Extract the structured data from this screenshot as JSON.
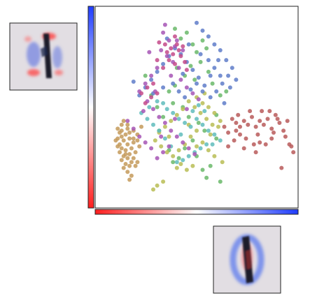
{
  "chart_data": {
    "type": "scatter",
    "title": "",
    "xlabel": "",
    "ylabel": "",
    "xlim": [
      0,
      1
    ],
    "ylim": [
      0,
      1
    ],
    "grid": false,
    "legend": "none",
    "colorbars": [
      {
        "orientation": "vertical",
        "colors": [
          "#1f3cff",
          "#ffffff",
          "#ff1e1e"
        ]
      },
      {
        "orientation": "horizontal",
        "colors": [
          "#ff1e1e",
          "#ffffff",
          "#1f3cff"
        ]
      }
    ],
    "series": [
      {
        "color": "#b85a5a",
        "points": [
          [
            0.68,
            0.44
          ],
          [
            0.7,
            0.42
          ],
          [
            0.72,
            0.4
          ],
          [
            0.74,
            0.43
          ],
          [
            0.76,
            0.41
          ],
          [
            0.78,
            0.45
          ],
          [
            0.8,
            0.4
          ],
          [
            0.82,
            0.43
          ],
          [
            0.84,
            0.41
          ],
          [
            0.86,
            0.44
          ],
          [
            0.88,
            0.39
          ],
          [
            0.9,
            0.46
          ],
          [
            0.92,
            0.42
          ],
          [
            0.94,
            0.38
          ],
          [
            0.96,
            0.43
          ],
          [
            0.97,
            0.31
          ],
          [
            0.98,
            0.3
          ],
          [
            0.99,
            0.27
          ],
          [
            0.93,
            0.19
          ],
          [
            0.88,
            0.34
          ],
          [
            0.85,
            0.31
          ],
          [
            0.82,
            0.32
          ],
          [
            0.79,
            0.31
          ],
          [
            0.75,
            0.34
          ],
          [
            0.72,
            0.36
          ],
          [
            0.7,
            0.38
          ],
          [
            0.66,
            0.37
          ],
          [
            0.64,
            0.4
          ],
          [
            0.71,
            0.46
          ],
          [
            0.77,
            0.48
          ],
          [
            0.83,
            0.48
          ],
          [
            0.87,
            0.48
          ],
          [
            0.95,
            0.35
          ],
          [
            0.89,
            0.37
          ],
          [
            0.81,
            0.36
          ],
          [
            0.69,
            0.33
          ],
          [
            0.74,
            0.29
          ],
          [
            0.8,
            0.27
          ],
          [
            0.66,
            0.3
          ],
          [
            0.91,
            0.44
          ]
        ]
      },
      {
        "color": "#c49a5a",
        "points": [
          [
            0.1,
            0.39
          ],
          [
            0.11,
            0.37
          ],
          [
            0.12,
            0.35
          ],
          [
            0.1,
            0.34
          ],
          [
            0.13,
            0.33
          ],
          [
            0.11,
            0.31
          ],
          [
            0.12,
            0.29
          ],
          [
            0.14,
            0.28
          ],
          [
            0.11,
            0.27
          ],
          [
            0.13,
            0.25
          ],
          [
            0.15,
            0.24
          ],
          [
            0.12,
            0.23
          ],
          [
            0.14,
            0.21
          ],
          [
            0.16,
            0.2
          ],
          [
            0.13,
            0.19
          ],
          [
            0.15,
            0.17
          ],
          [
            0.17,
            0.15
          ],
          [
            0.16,
            0.13
          ],
          [
            0.14,
            0.36
          ],
          [
            0.16,
            0.34
          ],
          [
            0.18,
            0.32
          ],
          [
            0.15,
            0.31
          ],
          [
            0.17,
            0.29
          ],
          [
            0.19,
            0.27
          ],
          [
            0.16,
            0.26
          ],
          [
            0.18,
            0.24
          ],
          [
            0.2,
            0.22
          ],
          [
            0.17,
            0.22
          ],
          [
            0.19,
            0.2
          ],
          [
            0.12,
            0.41
          ],
          [
            0.15,
            0.39
          ],
          [
            0.18,
            0.38
          ],
          [
            0.2,
            0.36
          ],
          [
            0.22,
            0.4
          ],
          [
            0.13,
            0.43
          ],
          [
            0.1,
            0.3
          ],
          [
            0.09,
            0.33
          ],
          [
            0.14,
            0.26
          ],
          [
            0.21,
            0.3
          ],
          [
            0.16,
            0.37
          ],
          [
            0.12,
            0.38
          ],
          [
            0.18,
            0.34
          ],
          [
            0.2,
            0.33
          ],
          [
            0.15,
            0.41
          ]
        ]
      },
      {
        "color": "#6ab86a",
        "points": [
          [
            0.39,
            0.9
          ],
          [
            0.42,
            0.85
          ],
          [
            0.45,
            0.88
          ],
          [
            0.48,
            0.82
          ],
          [
            0.5,
            0.78
          ],
          [
            0.53,
            0.84
          ],
          [
            0.55,
            0.8
          ],
          [
            0.52,
            0.73
          ],
          [
            0.47,
            0.71
          ],
          [
            0.44,
            0.66
          ],
          [
            0.49,
            0.64
          ],
          [
            0.56,
            0.68
          ],
          [
            0.58,
            0.62
          ],
          [
            0.4,
            0.7
          ],
          [
            0.36,
            0.58
          ],
          [
            0.38,
            0.52
          ],
          [
            0.43,
            0.5
          ],
          [
            0.46,
            0.45
          ],
          [
            0.51,
            0.42
          ],
          [
            0.54,
            0.38
          ],
          [
            0.48,
            0.33
          ],
          [
            0.44,
            0.29
          ],
          [
            0.5,
            0.25
          ],
          [
            0.41,
            0.24
          ],
          [
            0.38,
            0.22
          ],
          [
            0.36,
            0.28
          ],
          [
            0.57,
            0.2
          ],
          [
            0.53,
            0.18
          ],
          [
            0.6,
            0.34
          ],
          [
            0.62,
            0.56
          ],
          [
            0.3,
            0.5
          ],
          [
            0.27,
            0.56
          ],
          [
            0.24,
            0.66
          ],
          [
            0.33,
            0.45
          ],
          [
            0.55,
            0.14
          ],
          [
            0.62,
            0.12
          ],
          [
            0.31,
            0.38
          ],
          [
            0.39,
            0.61
          ],
          [
            0.65,
            0.58
          ],
          [
            0.6,
            0.46
          ]
        ]
      },
      {
        "color": "#b8bd55",
        "points": [
          [
            0.5,
            0.55
          ],
          [
            0.53,
            0.52
          ],
          [
            0.56,
            0.5
          ],
          [
            0.59,
            0.47
          ],
          [
            0.62,
            0.43
          ],
          [
            0.61,
            0.4
          ],
          [
            0.58,
            0.41
          ],
          [
            0.55,
            0.44
          ],
          [
            0.52,
            0.47
          ],
          [
            0.49,
            0.5
          ],
          [
            0.46,
            0.53
          ],
          [
            0.43,
            0.49
          ],
          [
            0.4,
            0.46
          ],
          [
            0.37,
            0.43
          ],
          [
            0.34,
            0.4
          ],
          [
            0.31,
            0.37
          ],
          [
            0.29,
            0.33
          ],
          [
            0.32,
            0.3
          ],
          [
            0.35,
            0.27
          ],
          [
            0.38,
            0.25
          ],
          [
            0.41,
            0.28
          ],
          [
            0.44,
            0.31
          ],
          [
            0.47,
            0.35
          ],
          [
            0.5,
            0.38
          ],
          [
            0.53,
            0.32
          ],
          [
            0.56,
            0.28
          ],
          [
            0.59,
            0.25
          ],
          [
            0.63,
            0.22
          ],
          [
            0.48,
            0.2
          ],
          [
            0.45,
            0.18
          ],
          [
            0.42,
            0.21
          ],
          [
            0.4,
            0.19
          ],
          [
            0.33,
            0.12
          ],
          [
            0.3,
            0.1
          ],
          [
            0.28,
            0.08
          ],
          [
            0.5,
            0.3
          ],
          [
            0.57,
            0.36
          ],
          [
            0.54,
            0.57
          ],
          [
            0.46,
            0.41
          ],
          [
            0.36,
            0.35
          ]
        ]
      },
      {
        "color": "#5fbcbc",
        "points": [
          [
            0.33,
            0.52
          ],
          [
            0.35,
            0.49
          ],
          [
            0.38,
            0.47
          ],
          [
            0.41,
            0.44
          ],
          [
            0.44,
            0.42
          ],
          [
            0.47,
            0.4
          ],
          [
            0.5,
            0.44
          ],
          [
            0.53,
            0.41
          ],
          [
            0.56,
            0.38
          ],
          [
            0.59,
            0.36
          ],
          [
            0.62,
            0.33
          ],
          [
            0.55,
            0.31
          ],
          [
            0.52,
            0.29
          ],
          [
            0.49,
            0.27
          ],
          [
            0.46,
            0.25
          ],
          [
            0.43,
            0.23
          ],
          [
            0.4,
            0.22
          ],
          [
            0.37,
            0.3
          ],
          [
            0.34,
            0.34
          ],
          [
            0.31,
            0.38
          ],
          [
            0.28,
            0.41
          ],
          [
            0.25,
            0.44
          ],
          [
            0.22,
            0.47
          ],
          [
            0.26,
            0.5
          ],
          [
            0.3,
            0.53
          ],
          [
            0.48,
            0.48
          ],
          [
            0.51,
            0.51
          ],
          [
            0.54,
            0.48
          ],
          [
            0.58,
            0.31
          ],
          [
            0.42,
            0.36
          ]
        ]
      },
      {
        "color": "#5f7dc9",
        "points": [
          [
            0.5,
            0.93
          ],
          [
            0.53,
            0.89
          ],
          [
            0.56,
            0.86
          ],
          [
            0.59,
            0.82
          ],
          [
            0.62,
            0.79
          ],
          [
            0.65,
            0.74
          ],
          [
            0.68,
            0.7
          ],
          [
            0.66,
            0.66
          ],
          [
            0.63,
            0.62
          ],
          [
            0.6,
            0.58
          ],
          [
            0.57,
            0.55
          ],
          [
            0.54,
            0.61
          ],
          [
            0.51,
            0.65
          ],
          [
            0.48,
            0.69
          ],
          [
            0.45,
            0.73
          ],
          [
            0.42,
            0.77
          ],
          [
            0.39,
            0.8
          ],
          [
            0.36,
            0.76
          ],
          [
            0.33,
            0.72
          ],
          [
            0.3,
            0.68
          ],
          [
            0.27,
            0.64
          ],
          [
            0.24,
            0.6
          ],
          [
            0.21,
            0.56
          ],
          [
            0.18,
            0.63
          ],
          [
            0.38,
            0.62
          ],
          [
            0.41,
            0.58
          ],
          [
            0.44,
            0.55
          ],
          [
            0.47,
            0.59
          ],
          [
            0.5,
            0.62
          ],
          [
            0.53,
            0.58
          ],
          [
            0.56,
            0.74
          ],
          [
            0.59,
            0.7
          ],
          [
            0.62,
            0.66
          ],
          [
            0.7,
            0.64
          ],
          [
            0.67,
            0.6
          ],
          [
            0.64,
            0.52
          ],
          [
            0.57,
            0.66
          ],
          [
            0.43,
            0.67
          ],
          [
            0.33,
            0.6
          ],
          [
            0.28,
            0.57
          ],
          [
            0.35,
            0.85
          ],
          [
            0.46,
            0.82
          ],
          [
            0.61,
            0.74
          ],
          [
            0.52,
            0.77
          ]
        ]
      },
      {
        "color": "#a655b5",
        "points": [
          [
            0.33,
            0.88
          ],
          [
            0.36,
            0.84
          ],
          [
            0.39,
            0.81
          ],
          [
            0.32,
            0.79
          ],
          [
            0.35,
            0.76
          ],
          [
            0.38,
            0.73
          ],
          [
            0.41,
            0.7
          ],
          [
            0.3,
            0.7
          ],
          [
            0.27,
            0.66
          ],
          [
            0.24,
            0.62
          ],
          [
            0.21,
            0.58
          ],
          [
            0.25,
            0.53
          ],
          [
            0.28,
            0.49
          ],
          [
            0.31,
            0.45
          ],
          [
            0.34,
            0.42
          ],
          [
            0.37,
            0.38
          ],
          [
            0.4,
            0.35
          ],
          [
            0.43,
            0.32
          ],
          [
            0.46,
            0.29
          ],
          [
            0.49,
            0.26
          ],
          [
            0.36,
            0.3
          ],
          [
            0.33,
            0.27
          ],
          [
            0.3,
            0.24
          ],
          [
            0.27,
            0.29
          ],
          [
            0.24,
            0.32
          ],
          [
            0.21,
            0.35
          ],
          [
            0.18,
            0.39
          ],
          [
            0.15,
            0.43
          ],
          [
            0.42,
            0.64
          ],
          [
            0.45,
            0.6
          ],
          [
            0.48,
            0.57
          ],
          [
            0.51,
            0.54
          ],
          [
            0.4,
            0.84
          ],
          [
            0.43,
            0.79
          ],
          [
            0.37,
            0.66
          ],
          [
            0.29,
            0.58
          ],
          [
            0.23,
            0.48
          ],
          [
            0.32,
            0.35
          ],
          [
            0.39,
            0.44
          ],
          [
            0.45,
            0.49
          ],
          [
            0.26,
            0.78
          ],
          [
            0.34,
            0.92
          ]
        ]
      },
      {
        "color": "#c44a8a",
        "points": [
          [
            0.34,
            0.82
          ],
          [
            0.37,
            0.8
          ],
          [
            0.4,
            0.82
          ],
          [
            0.35,
            0.78
          ],
          [
            0.38,
            0.77
          ],
          [
            0.41,
            0.79
          ],
          [
            0.43,
            0.81
          ],
          [
            0.36,
            0.74
          ],
          [
            0.39,
            0.72
          ],
          [
            0.33,
            0.7
          ],
          [
            0.3,
            0.74
          ],
          [
            0.28,
            0.62
          ],
          [
            0.25,
            0.6
          ],
          [
            0.22,
            0.57
          ],
          [
            0.27,
            0.55
          ],
          [
            0.3,
            0.57
          ],
          [
            0.42,
            0.76
          ],
          [
            0.44,
            0.73
          ],
          [
            0.31,
            0.83
          ],
          [
            0.39,
            0.86
          ],
          [
            0.45,
            0.69
          ],
          [
            0.24,
            0.52
          ]
        ]
      }
    ]
  }
}
